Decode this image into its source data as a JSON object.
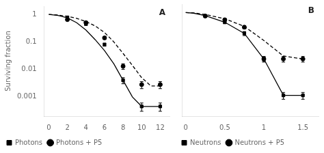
{
  "chart_data": [
    {
      "type": "scatter",
      "annotations": [
        "A"
      ],
      "ylabel": "Surviving fraction",
      "log": "y",
      "xlim": [
        -0.5,
        13
      ],
      "xticks": [
        0,
        2,
        4,
        6,
        8,
        10,
        12
      ],
      "ylim": [
        0.0002,
        2.0
      ],
      "yticks": [
        0.001,
        0.01,
        0.1,
        1
      ],
      "grid": false,
      "legend": "lower left",
      "series": [
        {
          "type": "line",
          "line_style": "solid",
          "color": "black",
          "x": [
            0,
            1,
            2,
            3,
            4,
            5,
            6,
            7,
            8,
            9,
            10,
            11,
            12
          ],
          "values": [
            1.0,
            0.92,
            0.75,
            0.5,
            0.27,
            0.12,
            0.048,
            0.016,
            0.004,
            0.001,
            0.00045,
            0.00045,
            0.00045
          ]
        },
        {
          "type": "line",
          "line_style": "dashed",
          "color": "black",
          "x": [
            0,
            1,
            2,
            3,
            4,
            5,
            6,
            7,
            8,
            9,
            10,
            11,
            12
          ],
          "values": [
            1.0,
            0.95,
            0.85,
            0.72,
            0.55,
            0.38,
            0.22,
            0.1,
            0.038,
            0.014,
            0.005,
            0.0025,
            0.0025
          ]
        },
        {
          "name": "Photons",
          "type": "scatter",
          "marker": "square",
          "color": "black",
          "x": [
            2,
            4,
            6,
            8,
            10,
            12
          ],
          "values": [
            0.78,
            0.45,
            0.08,
            0.004,
            0.00045,
            0.00045
          ],
          "yerr": [
            0.06,
            0.05,
            0.01,
            0.001,
            0.00015,
            0.00015
          ]
        },
        {
          "name": "Photons + P5",
          "type": "scatter",
          "marker": "circle",
          "color": "black",
          "x": [
            2,
            4,
            6,
            8,
            10,
            12
          ],
          "values": [
            0.65,
            0.5,
            0.14,
            0.013,
            0.0028,
            0.0028
          ],
          "yerr": [
            0.06,
            0.05,
            0.015,
            0.003,
            0.0008,
            0.0008
          ]
        }
      ]
    },
    {
      "type": "scatter",
      "annotations": [
        "B"
      ],
      "log": "y",
      "tick_labels": "x",
      "xlim": [
        -0.05,
        1.7
      ],
      "xticks": [
        0,
        0.5,
        1,
        1.5
      ],
      "ylim": [
        0.0002,
        2.0
      ],
      "yticks": [
        0.001,
        0.01,
        0.1,
        1
      ],
      "grid": false,
      "legend": "lower left",
      "series": [
        {
          "type": "line",
          "line_style": "solid",
          "color": "black",
          "x": [
            0,
            0.1,
            0.25,
            0.5,
            0.75,
            1.0,
            1.25,
            1.5
          ],
          "values": [
            1.0,
            0.95,
            0.78,
            0.45,
            0.18,
            0.022,
            0.0011,
            0.0011
          ]
        },
        {
          "type": "line",
          "line_style": "dashed",
          "color": "black",
          "x": [
            0,
            0.1,
            0.25,
            0.5,
            0.75,
            1.0,
            1.25,
            1.5
          ],
          "values": [
            1.0,
            0.97,
            0.85,
            0.6,
            0.32,
            0.1,
            0.028,
            0.022
          ]
        },
        {
          "name": "Neutrons",
          "type": "scatter",
          "marker": "square",
          "color": "black",
          "x": [
            0.25,
            0.5,
            0.75,
            1.0,
            1.25,
            1.5
          ],
          "values": [
            0.75,
            0.45,
            0.18,
            0.022,
            0.0011,
            0.0011
          ],
          "yerr": [
            0.06,
            0.05,
            0.03,
            0.004,
            0.0003,
            0.0003
          ]
        },
        {
          "name": "Neutrons + P5",
          "type": "scatter",
          "marker": "circle",
          "color": "black",
          "x": [
            0.25,
            0.5,
            0.75,
            1.0,
            1.25,
            1.5
          ],
          "values": [
            0.75,
            0.55,
            0.3,
            0.022,
            0.022,
            0.022
          ],
          "yerr": [
            0.06,
            0.06,
            0.04,
            0.005,
            0.005,
            0.005
          ]
        }
      ]
    }
  ]
}
